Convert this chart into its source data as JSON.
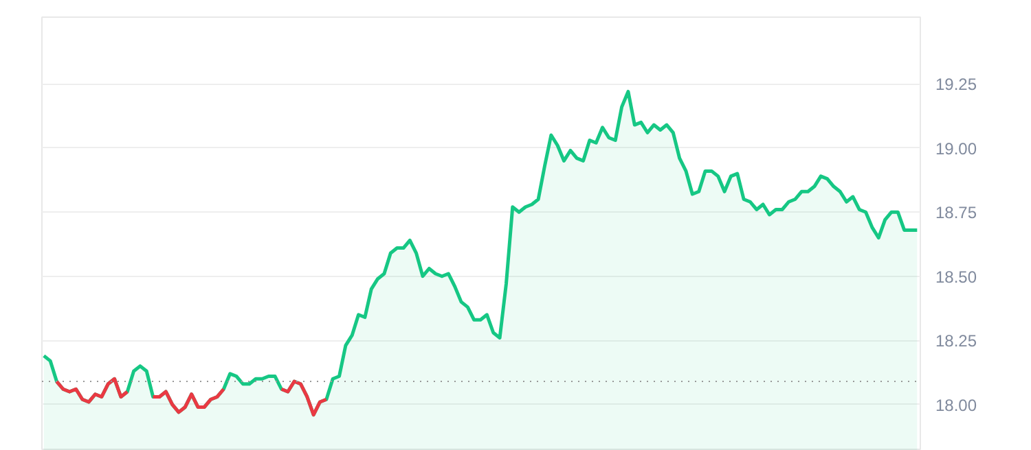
{
  "chart_data": {
    "type": "area",
    "categories": [
      null,
      null,
      null,
      null,
      null,
      null,
      null,
      null,
      null,
      null,
      null,
      null,
      null,
      null,
      null,
      null,
      null,
      null,
      null,
      null,
      null,
      null,
      null,
      null,
      null,
      null,
      null,
      null,
      null,
      null,
      null,
      null,
      null,
      null,
      null,
      null,
      null,
      null,
      null,
      null,
      null,
      null,
      null,
      null,
      null,
      null,
      null,
      null,
      null,
      null,
      null,
      null,
      null,
      null,
      null,
      null,
      null,
      null,
      null,
      null,
      null,
      null,
      null,
      null,
      null,
      null,
      null,
      null,
      null,
      null,
      null,
      null,
      null,
      null,
      null,
      null,
      null,
      null,
      null,
      null,
      null,
      null,
      null,
      null,
      null,
      null,
      null,
      null,
      null,
      null,
      null,
      null,
      null,
      null,
      null,
      null,
      null,
      null,
      null,
      null,
      null,
      null,
      null,
      null,
      null,
      null,
      null,
      null,
      null,
      null,
      null,
      null,
      null,
      null,
      null,
      null,
      null,
      null,
      null,
      null,
      null,
      null,
      null,
      null,
      null,
      null,
      null,
      null,
      null,
      null,
      null,
      null,
      null,
      null,
      null,
      null,
      null
    ],
    "series": [
      {
        "color": "#16c784",
        "values": [
          18.19,
          18.17,
          18.09,
          18.06,
          18.05,
          18.06,
          18.02,
          18.01,
          18.04,
          18.03,
          18.08,
          18.1,
          18.03,
          18.05,
          18.13,
          18.15,
          18.13,
          18.03,
          18.03,
          18.05,
          18.0,
          17.97,
          17.99,
          18.04,
          17.99,
          17.99,
          18.02,
          18.03,
          18.06,
          18.12,
          18.11,
          18.08,
          18.08,
          18.1,
          18.1,
          18.11,
          18.11,
          18.06,
          18.05,
          18.09,
          18.08,
          18.03,
          17.96,
          18.01,
          18.02,
          18.1,
          18.11,
          18.23,
          18.27,
          18.35,
          18.34,
          18.45,
          18.49,
          18.51,
          18.59,
          18.61,
          18.61,
          18.64,
          18.59,
          18.5,
          18.53,
          18.51,
          18.5,
          18.51,
          18.46,
          18.4,
          18.38,
          18.33,
          18.33,
          18.35,
          18.28,
          18.26,
          18.47,
          18.77,
          18.75,
          18.77,
          18.78,
          18.8,
          18.93,
          19.05,
          19.01,
          18.95,
          18.99,
          18.96,
          18.95,
          19.03,
          19.02,
          19.08,
          19.04,
          19.03,
          19.16,
          19.22,
          19.09,
          19.1,
          19.06,
          19.09,
          19.07,
          19.09,
          19.06,
          18.96,
          18.91,
          18.82,
          18.83,
          18.91,
          18.91,
          18.89,
          18.83,
          18.89,
          18.9,
          18.8,
          18.79,
          18.76,
          18.78,
          18.74,
          18.76,
          18.76,
          18.79,
          18.8,
          18.83,
          18.83,
          18.85,
          18.89,
          18.88,
          18.85,
          18.83,
          18.79,
          18.81,
          18.76,
          18.75,
          18.69,
          18.65,
          18.72,
          18.75,
          18.75,
          18.68,
          18.68,
          18.68
        ]
      },
      {
        "type": "line",
        "color": "#ea3943",
        "values": [
          null,
          null,
          18.09,
          18.06,
          18.05,
          18.06,
          18.02,
          18.01,
          18.04,
          18.03,
          18.08,
          18.1,
          18.03,
          18.05,
          null,
          null,
          null,
          18.03,
          18.03,
          18.05,
          18.0,
          17.97,
          17.99,
          18.04,
          17.99,
          17.99,
          18.02,
          18.03,
          18.06,
          null,
          null,
          null,
          null,
          null,
          null,
          null,
          null,
          18.06,
          18.05,
          18.09,
          18.08,
          18.03,
          17.96,
          18.01,
          18.02,
          null,
          null,
          null,
          null,
          null,
          null,
          null,
          null,
          null,
          null,
          null,
          null,
          null,
          null,
          null,
          null,
          null,
          null,
          null,
          null,
          null,
          null,
          null,
          null,
          null,
          null,
          null,
          null,
          null,
          null,
          null,
          null,
          null,
          null,
          null,
          null,
          null,
          null,
          null,
          null,
          null,
          null,
          null,
          null,
          null,
          null,
          null,
          null,
          null,
          null,
          null,
          null,
          null,
          null,
          null,
          null,
          null,
          null,
          null,
          null,
          null,
          null,
          null,
          null,
          null,
          null,
          null,
          null,
          null,
          null,
          null,
          null,
          null,
          null,
          null,
          null,
          null,
          null,
          null,
          null,
          null,
          null,
          null,
          null,
          null,
          null,
          null,
          null,
          null,
          null,
          null,
          null
        ]
      }
    ],
    "ylim": [
      17.82,
      19.51
    ],
    "yticks": [
      {
        "value": 18.0,
        "label": "18.00"
      },
      {
        "value": 18.25,
        "label": "18.25"
      },
      {
        "value": 18.5,
        "label": "18.50"
      },
      {
        "value": 18.75,
        "label": "18.75"
      },
      {
        "value": 19.0,
        "label": "19.00"
      },
      {
        "value": 19.25,
        "label": "19.25"
      }
    ],
    "ref_lines": [
      {
        "axis": "y",
        "value": 18.09,
        "color": "#999999",
        "line_style": "dotted"
      }
    ],
    "grid": "y"
  }
}
